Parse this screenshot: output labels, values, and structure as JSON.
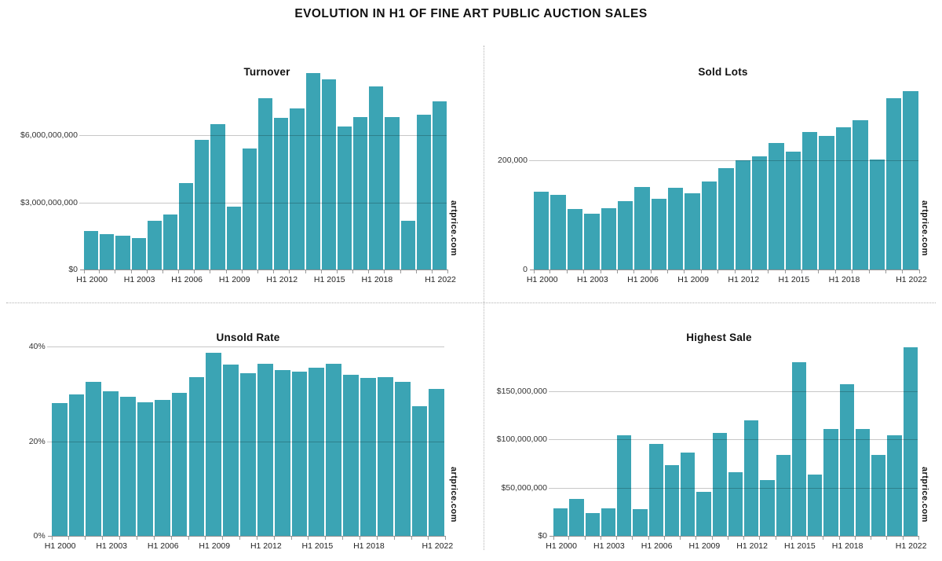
{
  "page_title": "EVOLUTION IN H1 OF FINE ART PUBLIC AUCTION SALES",
  "branding": {
    "watermark": "artprice.com",
    "bar_color": "#3BA4B4"
  },
  "chart_data": [
    {
      "type": "bar",
      "title": "Turnover",
      "unit": "USD",
      "legend": "none",
      "grid": "horizontal",
      "ylim": [
        0,
        9200000000
      ],
      "categories": [
        "H1 2000",
        "H1 2001",
        "H1 2002",
        "H1 2003",
        "H1 2004",
        "H1 2005",
        "H1 2006",
        "H1 2007",
        "H1 2008",
        "H1 2009",
        "H1 2010",
        "H1 2011",
        "H1 2012",
        "H1 2013",
        "H1 2014",
        "H1 2015",
        "H1 2016",
        "H1 2017",
        "H1 2018",
        "H1 2019",
        "H1 2020",
        "H1 2021",
        "H1 2022"
      ],
      "values": [
        1720000000,
        1600000000,
        1510000000,
        1400000000,
        2170000000,
        2470000000,
        3870000000,
        5810000000,
        6520000000,
        2810000000,
        5420000000,
        7680000000,
        6780000000,
        7220000000,
        8810000000,
        8500000000,
        6410000000,
        6820000000,
        8210000000,
        6820000000,
        2190000000,
        6920000000,
        7540000000
      ],
      "y_ticks": [
        {
          "value": 0,
          "label": "$0"
        },
        {
          "value": 3000000000,
          "label": "$3,000,000,000"
        },
        {
          "value": 6000000000,
          "label": "$6,000,000,000"
        }
      ],
      "x_ticks": [
        {
          "index": 0,
          "label": "H1 2000"
        },
        {
          "index": 3,
          "label": "H1 2003"
        },
        {
          "index": 6,
          "label": "H1 2006"
        },
        {
          "index": 9,
          "label": "H1 2009"
        },
        {
          "index": 12,
          "label": "H1 2012"
        },
        {
          "index": 15,
          "label": "H1 2015"
        },
        {
          "index": 18,
          "label": "H1 2018"
        },
        {
          "index": 22,
          "label": "H1 2022"
        }
      ]
    },
    {
      "type": "bar",
      "title": "Sold Lots",
      "unit": "lots",
      "legend": "none",
      "grid": "horizontal",
      "ylim": [
        0,
        340000
      ],
      "categories": [
        "H1 2000",
        "H1 2001",
        "H1 2002",
        "H1 2003",
        "H1 2004",
        "H1 2005",
        "H1 2006",
        "H1 2007",
        "H1 2008",
        "H1 2009",
        "H1 2010",
        "H1 2011",
        "H1 2012",
        "H1 2013",
        "H1 2014",
        "H1 2015",
        "H1 2016",
        "H1 2017",
        "H1 2018",
        "H1 2019",
        "H1 2020",
        "H1 2021",
        "H1 2022"
      ],
      "values": [
        142000,
        136000,
        111000,
        102000,
        112000,
        125000,
        151000,
        130000,
        149000,
        139000,
        161000,
        185000,
        200000,
        207000,
        231000,
        216000,
        252000,
        244000,
        260000,
        274000,
        202000,
        313000,
        326000
      ],
      "y_ticks": [
        {
          "value": 0,
          "label": "0"
        },
        {
          "value": 200000,
          "label": "200,000"
        }
      ],
      "x_ticks": [
        {
          "index": 0,
          "label": "H1 2000"
        },
        {
          "index": 3,
          "label": "H1 2003"
        },
        {
          "index": 6,
          "label": "H1 2006"
        },
        {
          "index": 9,
          "label": "H1 2009"
        },
        {
          "index": 12,
          "label": "H1 2012"
        },
        {
          "index": 15,
          "label": "H1 2015"
        },
        {
          "index": 18,
          "label": "H1 2018"
        },
        {
          "index": 22,
          "label": "H1 2022"
        }
      ]
    },
    {
      "type": "bar",
      "title": "Unsold Rate",
      "unit": "percent",
      "legend": "none",
      "grid": "horizontal",
      "ylim": [
        0,
        42
      ],
      "categories": [
        "H1 2000",
        "H1 2001",
        "H1 2002",
        "H1 2003",
        "H1 2004",
        "H1 2005",
        "H1 2006",
        "H1 2007",
        "H1 2008",
        "H1 2009",
        "H1 2010",
        "H1 2011",
        "H1 2012",
        "H1 2013",
        "H1 2014",
        "H1 2015",
        "H1 2016",
        "H1 2017",
        "H1 2018",
        "H1 2019",
        "H1 2020",
        "H1 2021",
        "H1 2022"
      ],
      "values": [
        28.0,
        29.8,
        32.6,
        30.5,
        29.3,
        28.2,
        28.7,
        30.2,
        33.6,
        38.7,
        36.1,
        34.4,
        36.4,
        35.0,
        34.7,
        35.5,
        36.4,
        34.1,
        33.4,
        33.5,
        32.5,
        27.4,
        31.0
      ],
      "y_ticks": [
        {
          "value": 0,
          "label": "0%"
        },
        {
          "value": 20,
          "label": "20%"
        },
        {
          "value": 40,
          "label": "40%"
        }
      ],
      "x_ticks": [
        {
          "index": 0,
          "label": "H1 2000"
        },
        {
          "index": 3,
          "label": "H1 2003"
        },
        {
          "index": 6,
          "label": "H1 2006"
        },
        {
          "index": 9,
          "label": "H1 2009"
        },
        {
          "index": 12,
          "label": "H1 2012"
        },
        {
          "index": 15,
          "label": "H1 2015"
        },
        {
          "index": 18,
          "label": "H1 2018"
        },
        {
          "index": 22,
          "label": "H1 2022"
        }
      ]
    },
    {
      "type": "bar",
      "title": "Highest Sale",
      "unit": "USD",
      "legend": "none",
      "grid": "horizontal",
      "ylim": [
        0,
        205000000
      ],
      "categories": [
        "H1 2000",
        "H1 2001",
        "H1 2002",
        "H1 2003",
        "H1 2004",
        "H1 2005",
        "H1 2006",
        "H1 2007",
        "H1 2008",
        "H1 2009",
        "H1 2010",
        "H1 2011",
        "H1 2012",
        "H1 2013",
        "H1 2014",
        "H1 2015",
        "H1 2016",
        "H1 2017",
        "H1 2018",
        "H1 2019",
        "H1 2020",
        "H1 2021",
        "H1 2022"
      ],
      "values": [
        28700000,
        38300000,
        23800000,
        28700000,
        104200000,
        27900000,
        95200000,
        72800000,
        86300000,
        45600000,
        106500000,
        65600000,
        119900000,
        57900000,
        84000000,
        179400000,
        63400000,
        110500000,
        157200000,
        110700000,
        84000000,
        103800000,
        195000000
      ],
      "y_ticks": [
        {
          "value": 0,
          "label": "$0"
        },
        {
          "value": 50000000,
          "label": "$50,000,000"
        },
        {
          "value": 100000000,
          "label": "$100,000,000"
        },
        {
          "value": 150000000,
          "label": "$150,000,000"
        }
      ],
      "x_ticks": [
        {
          "index": 0,
          "label": "H1 2000"
        },
        {
          "index": 3,
          "label": "H1 2003"
        },
        {
          "index": 6,
          "label": "H1 2006"
        },
        {
          "index": 9,
          "label": "H1 2009"
        },
        {
          "index": 12,
          "label": "H1 2012"
        },
        {
          "index": 15,
          "label": "H1 2015"
        },
        {
          "index": 18,
          "label": "H1 2018"
        },
        {
          "index": 22,
          "label": "H1 2022"
        }
      ]
    }
  ]
}
